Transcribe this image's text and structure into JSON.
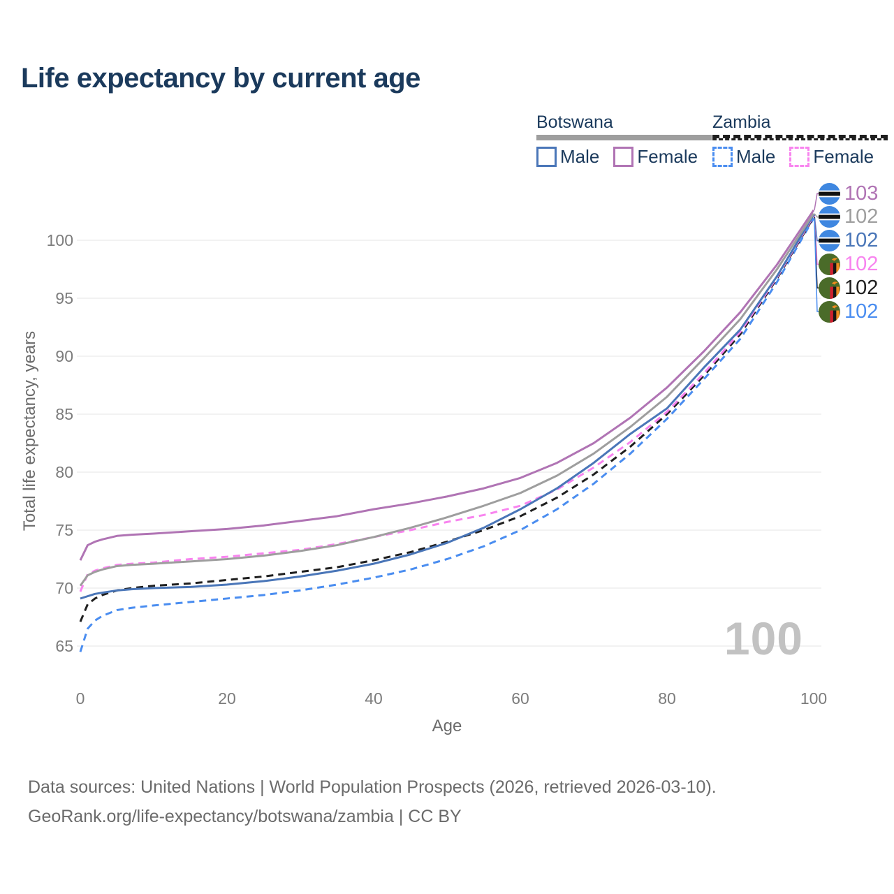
{
  "title": "Life expectancy by current age",
  "legend": {
    "groups": [
      {
        "label": "Botswana",
        "line_style": "solid",
        "color": "#9e9e9e",
        "items": [
          {
            "label": "Male",
            "color": "#4a76b8"
          },
          {
            "label": "Female",
            "color": "#b074b4"
          }
        ]
      },
      {
        "label": "Zambia",
        "line_style": "dashed",
        "color": "#1f1f1f",
        "items": [
          {
            "label": "Male",
            "color": "#4a8df0"
          },
          {
            "label": "Female",
            "color": "#f884ef"
          }
        ]
      }
    ]
  },
  "chart_data": {
    "type": "line",
    "x_label": "Age",
    "y_label": "Total life expectancy, years",
    "x_ticks": [
      0,
      20,
      40,
      60,
      80,
      100
    ],
    "y_ticks": [
      65,
      70,
      75,
      80,
      85,
      90,
      95,
      100
    ],
    "xlim": [
      0,
      100
    ],
    "ylim": [
      63.5,
      104
    ],
    "grid": "horizontal",
    "ages": [
      0,
      1,
      2,
      3,
      5,
      7,
      10,
      15,
      20,
      25,
      30,
      35,
      40,
      45,
      50,
      55,
      60,
      65,
      70,
      75,
      80,
      85,
      90,
      95,
      100
    ],
    "series": [
      {
        "name": "Botswana Female",
        "country": "botswana",
        "color": "#b074b4",
        "dashed": false,
        "end_label": "103",
        "values": [
          72.4,
          73.7,
          74.0,
          74.2,
          74.5,
          74.6,
          74.7,
          74.9,
          75.1,
          75.4,
          75.8,
          76.2,
          76.8,
          77.3,
          77.9,
          78.6,
          79.5,
          80.8,
          82.5,
          84.7,
          87.3,
          90.4,
          93.8,
          97.9,
          102.6
        ]
      },
      {
        "name": "Botswana",
        "country": "botswana",
        "color": "#9e9e9e",
        "dashed": false,
        "end_label": "102",
        "values": [
          70.2,
          71.1,
          71.4,
          71.6,
          71.9,
          72.0,
          72.1,
          72.3,
          72.5,
          72.8,
          73.2,
          73.7,
          74.4,
          75.2,
          76.1,
          77.1,
          78.2,
          79.7,
          81.6,
          83.9,
          86.5,
          89.8,
          93.2,
          97.5,
          102.3
        ]
      },
      {
        "name": "Botswana Male",
        "country": "botswana",
        "color": "#4a76b8",
        "dashed": false,
        "end_label": "102",
        "values": [
          69.1,
          69.3,
          69.5,
          69.6,
          69.8,
          69.9,
          70.0,
          70.1,
          70.3,
          70.6,
          71.0,
          71.5,
          72.1,
          72.9,
          73.9,
          75.2,
          76.8,
          78.6,
          80.8,
          83.3,
          85.5,
          89.0,
          92.3,
          96.9,
          102.2
        ]
      },
      {
        "name": "Zambia Female",
        "country": "zambia",
        "color": "#f884ef",
        "dashed": true,
        "end_label": "102",
        "values": [
          69.7,
          71.2,
          71.5,
          71.7,
          72.0,
          72.1,
          72.2,
          72.5,
          72.7,
          73.0,
          73.3,
          73.8,
          74.4,
          75.0,
          75.7,
          76.3,
          77.1,
          78.5,
          80.4,
          82.6,
          85.2,
          88.5,
          92.1,
          96.8,
          102.1
        ]
      },
      {
        "name": "Zambia",
        "country": "zambia",
        "color": "#1f1f1f",
        "dashed": true,
        "end_label": "102",
        "values": [
          67.1,
          68.6,
          69.1,
          69.4,
          69.8,
          70.0,
          70.2,
          70.4,
          70.7,
          71.0,
          71.4,
          71.8,
          72.4,
          73.1,
          74.0,
          75.0,
          76.2,
          77.8,
          79.8,
          82.2,
          85.0,
          88.3,
          91.9,
          96.7,
          102.0
        ]
      },
      {
        "name": "Zambia Male",
        "country": "zambia",
        "color": "#4a8df0",
        "dashed": true,
        "end_label": "102",
        "values": [
          64.5,
          66.5,
          67.2,
          67.6,
          68.1,
          68.3,
          68.5,
          68.8,
          69.1,
          69.4,
          69.8,
          70.3,
          70.9,
          71.6,
          72.5,
          73.6,
          75.0,
          76.8,
          79.0,
          81.6,
          84.6,
          88.0,
          91.5,
          96.4,
          101.9
        ]
      }
    ]
  },
  "hover_age_indicator": "100",
  "footer": {
    "line1": "Data sources: United Nations | World Population Prospects (2026, retrieved 2026-03-10).",
    "line2": "GeoRank.org/life-expectancy/botswana/zambia | CC BY"
  }
}
